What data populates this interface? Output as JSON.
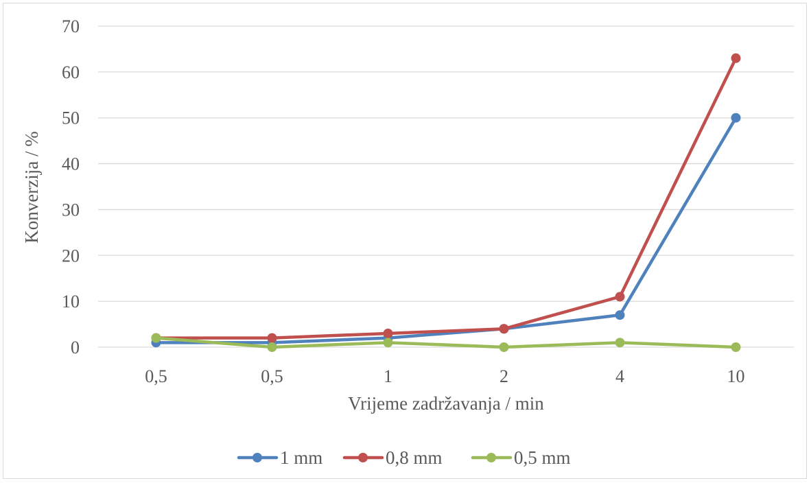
{
  "chart_data": {
    "type": "line",
    "categories": [
      "0,5",
      "0,5",
      "1",
      "2",
      "4",
      "10"
    ],
    "xlabel": "Vrijeme zadržavanja / min",
    "ylabel": "Konverzija / %",
    "ylim": [
      0,
      70
    ],
    "yticks": [
      0,
      10,
      20,
      30,
      40,
      50,
      60,
      70
    ],
    "grid": true,
    "legend_position": "bottom",
    "series": [
      {
        "name": "1 mm",
        "color": "#4f81bd",
        "values": [
          1,
          1,
          2,
          4,
          7,
          50
        ]
      },
      {
        "name": "0,8 mm",
        "color": "#c0504d",
        "values": [
          2,
          2,
          3,
          4,
          11,
          63
        ]
      },
      {
        "name": "0,5 mm",
        "color": "#9bbb59",
        "values": [
          2,
          0,
          1,
          0,
          1,
          0
        ]
      }
    ]
  }
}
